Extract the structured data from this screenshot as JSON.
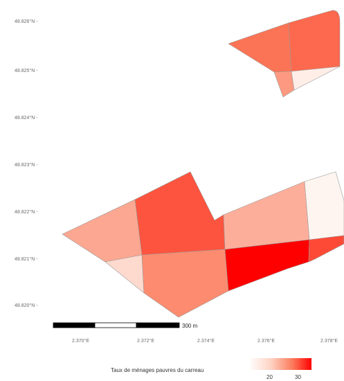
{
  "map": {
    "lat_ticks": [
      "48.826°N -",
      "48.825°N -",
      "48.824°N -",
      "48.823°N -",
      "48.822°N -",
      "48.821°N -",
      "48.820°N -"
    ],
    "lon_ticks": [
      "2.370°E",
      "2.372°E",
      "2.374°E",
      "2.376°E",
      "2.378°E"
    ],
    "scale_bar_label": "300 m",
    "colors": {
      "low": "#fff5f0",
      "high": "#ff0000",
      "outline": "#9a9a9a"
    },
    "cells": [
      {
        "id": "north-left",
        "value": 22
      },
      {
        "id": "north-right",
        "value": 23
      },
      {
        "id": "north-bottom",
        "value": 17
      },
      {
        "id": "north-white",
        "value": 5
      },
      {
        "id": "sw-left",
        "value": 15
      },
      {
        "id": "sw-center",
        "value": 25
      },
      {
        "id": "sw-bottom-left",
        "value": 8
      },
      {
        "id": "sw-bottom-center",
        "value": 19
      },
      {
        "id": "se-middle",
        "value": 14
      },
      {
        "id": "se-white",
        "value": 4
      },
      {
        "id": "se-red",
        "value": 33
      },
      {
        "id": "se-right",
        "value": 26
      },
      {
        "id": "se-connector",
        "value": 22
      }
    ]
  },
  "legend": {
    "title": "Taux de ménages pauvres du carreau",
    "ticks": [
      "20",
      "30"
    ]
  }
}
